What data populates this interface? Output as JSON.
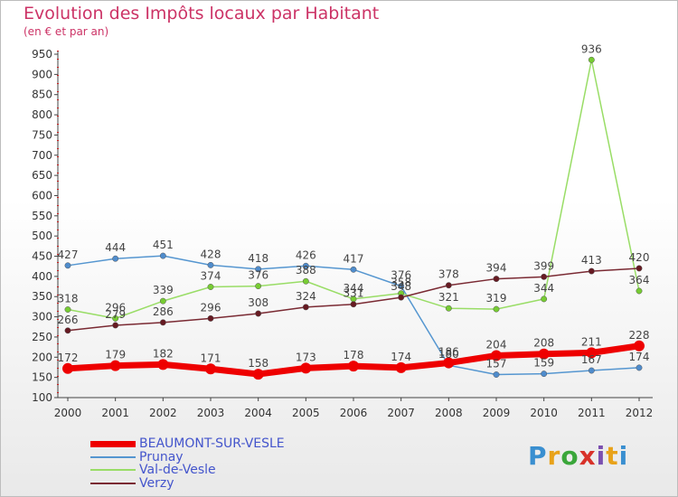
{
  "header": {
    "title": "Evolution des Impôts locaux par Habitant",
    "subtitle": "(en € et par an)"
  },
  "logo": {
    "letters": [
      "P",
      "r",
      "o",
      "x",
      "i",
      "t",
      "i"
    ]
  },
  "chart_data": {
    "type": "line",
    "title": "Evolution des Impôts locaux par Habitant",
    "subtitle": "(en € et par an)",
    "xlabel": "",
    "ylabel": "",
    "ylim": [
      100,
      950
    ],
    "yticks": [
      100,
      150,
      200,
      250,
      300,
      350,
      400,
      450,
      500,
      550,
      600,
      650,
      700,
      750,
      800,
      850,
      900,
      950
    ],
    "grid": false,
    "legend_position": "bottom-left",
    "x": [
      "2000",
      "2001",
      "2002",
      "2003",
      "2004",
      "2005",
      "2006",
      "2007",
      "2008",
      "2009",
      "2010",
      "2011",
      "2012"
    ],
    "series": [
      {
        "name": "BEAUMONT-SUR-VESLE",
        "color": "#ee0000",
        "marker": "#ee0000",
        "width": 7,
        "values": [
          172,
          179,
          182,
          171,
          158,
          173,
          178,
          174,
          186,
          204,
          208,
          211,
          228
        ]
      },
      {
        "name": "Prunay",
        "color": "#5596d0",
        "marker": "#4f8ccc",
        "width": 1.5,
        "values": [
          427,
          444,
          451,
          428,
          418,
          426,
          417,
          376,
          180,
          157,
          159,
          167,
          174
        ]
      },
      {
        "name": "Val-de-Vesle",
        "color": "#99dd66",
        "marker": "#77cc33",
        "width": 1.5,
        "values": [
          318,
          296,
          339,
          374,
          376,
          388,
          344,
          358,
          321,
          319,
          344,
          936,
          364
        ]
      },
      {
        "name": "Verzy",
        "color": "#7a2a33",
        "marker": "#661a22",
        "width": 1.5,
        "values": [
          266,
          279,
          286,
          296,
          308,
          324,
          331,
          348,
          378,
          394,
          399,
          413,
          420
        ]
      }
    ]
  }
}
